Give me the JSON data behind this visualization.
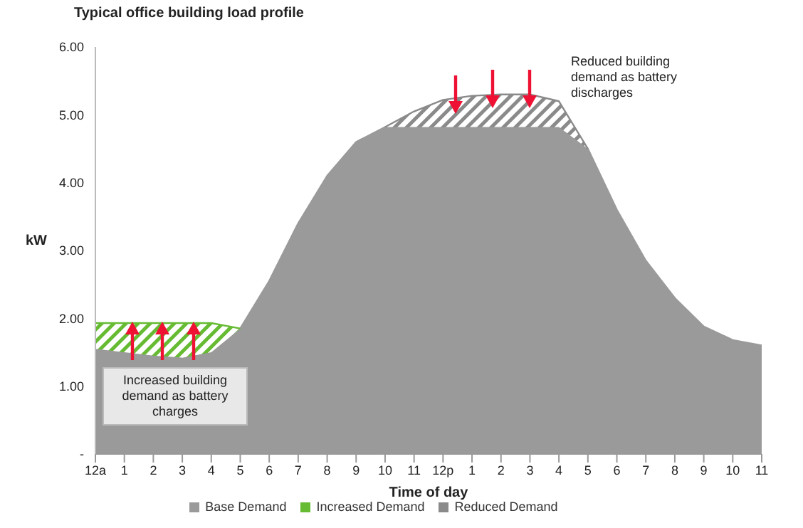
{
  "chart_data": {
    "type": "area",
    "title": "Typical office building load profile",
    "xlabel": "Time of day",
    "ylabel": "kW",
    "categories": [
      "12a",
      "1",
      "2",
      "3",
      "4",
      "5",
      "6",
      "7",
      "8",
      "9",
      "10",
      "11",
      "12p",
      "1",
      "2",
      "3",
      "4",
      "5",
      "6",
      "7",
      "8",
      "9",
      "10",
      "11"
    ],
    "stacked": true,
    "series": [
      {
        "name": "Base Demand",
        "color": "#9a9a9a",
        "values": [
          1.55,
          1.5,
          1.45,
          1.42,
          1.5,
          1.85,
          2.55,
          3.4,
          4.1,
          4.6,
          4.82,
          4.82,
          4.82,
          4.82,
          4.82,
          4.82,
          4.82,
          4.5,
          3.6,
          2.85,
          2.3,
          1.88,
          1.68,
          1.6
        ]
      },
      {
        "name": "Increased Demand",
        "color": "#66bb33",
        "values": [
          0.38,
          0.43,
          0.48,
          0.51,
          0.43,
          0,
          null,
          null,
          null,
          null,
          null,
          null,
          null,
          null,
          null,
          null,
          null,
          null,
          null,
          null,
          null,
          null,
          null,
          null
        ]
      },
      {
        "name": "Reduced Demand",
        "color": "#8a8a8a",
        "values": [
          null,
          null,
          null,
          null,
          null,
          null,
          null,
          null,
          null,
          null,
          0,
          0.23,
          0.4,
          0.46,
          0.48,
          0.48,
          0.38,
          0,
          null,
          null,
          null,
          null,
          null,
          null
        ]
      }
    ],
    "ylim": [
      0,
      6
    ],
    "yticks": [
      {
        "value": 0,
        "label": "-"
      },
      {
        "value": 1,
        "label": "1.00"
      },
      {
        "value": 2,
        "label": "2.00"
      },
      {
        "value": 3,
        "label": "3.00"
      },
      {
        "value": 4,
        "label": "4.00"
      },
      {
        "value": 5,
        "label": "5.00"
      },
      {
        "value": 6,
        "label": "6.00"
      }
    ],
    "legend": "bottom",
    "grid": false,
    "annotations": [
      "Increased building demand as battery charges",
      "Reduced building demand as battery discharges"
    ]
  }
}
